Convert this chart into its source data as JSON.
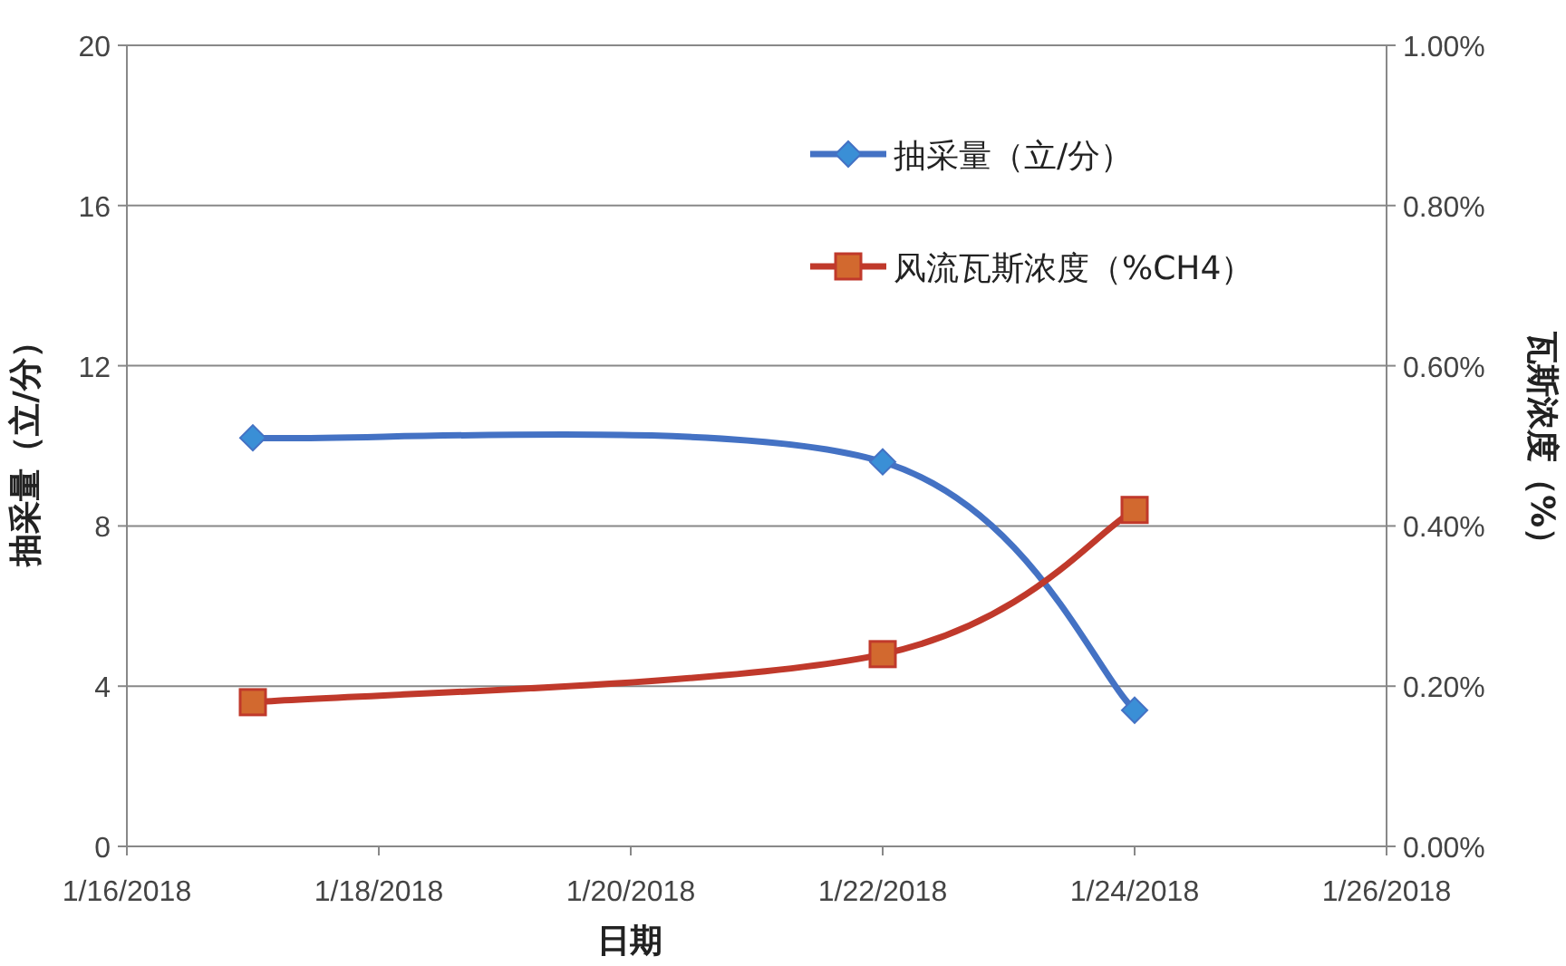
{
  "chart_data": {
    "type": "line",
    "xlabel": "日期",
    "ylabel": "抽采量（立/分）",
    "y2label": "瓦斯浓度（%）",
    "x": [
      "2018-01-17",
      "2018-01-22",
      "2018-01-24"
    ],
    "series": [
      {
        "name": "抽采量（立/分）",
        "color": "#4472c4",
        "marker": "diamond",
        "values": [
          10.2,
          9.6,
          3.4
        ]
      },
      {
        "name": "风流瓦斯浓度（%CH4）",
        "color": "#c0392b",
        "marker": "square",
        "axis": "y2",
        "values": [
          0.18,
          0.24,
          0.42
        ]
      }
    ],
    "xlim": [
      "2018-01-16",
      "2018-01-26"
    ],
    "xticks": [
      {
        "value": "2018-01-16",
        "label": "1/16/2018"
      },
      {
        "value": "2018-01-18",
        "label": "1/18/2018"
      },
      {
        "value": "2018-01-20",
        "label": "1/20/2018"
      },
      {
        "value": "2018-01-22",
        "label": "1/22/2018"
      },
      {
        "value": "2018-01-24",
        "label": "1/24/2018"
      },
      {
        "value": "2018-01-26",
        "label": "1/26/2018"
      }
    ],
    "ylim": [
      0,
      20
    ],
    "yticks": [
      0,
      4,
      8,
      12,
      16,
      20
    ],
    "y2lim": [
      0,
      1
    ],
    "y2ticks": [
      {
        "value": 0,
        "label": "0.00%"
      },
      {
        "value": 0.2,
        "label": "0.20%"
      },
      {
        "value": 0.4,
        "label": "0.40%"
      },
      {
        "value": 0.6,
        "label": "0.60%"
      },
      {
        "value": 0.8,
        "label": "0.80%"
      },
      {
        "value": 1,
        "label": "1.00%"
      }
    ],
    "grid": "y",
    "legend": "top right"
  }
}
